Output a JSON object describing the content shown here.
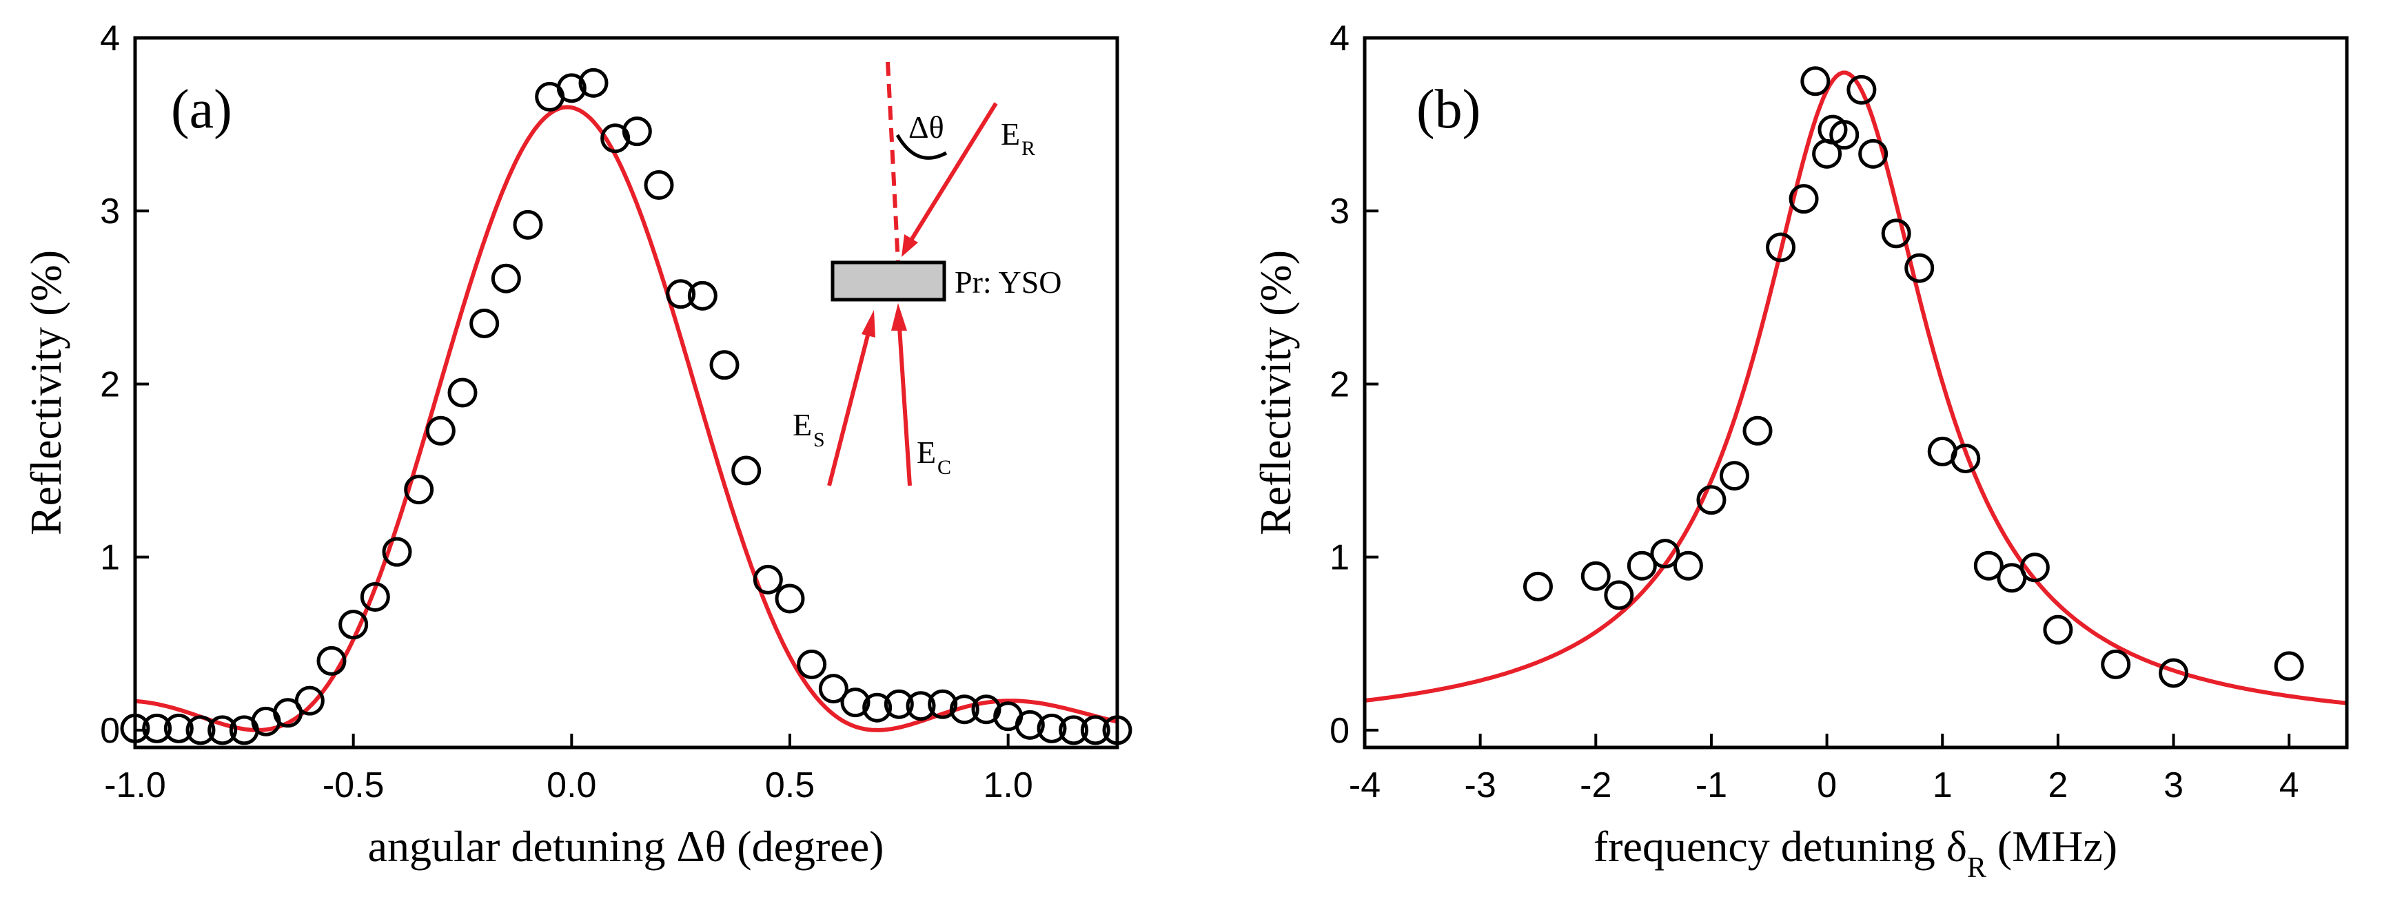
{
  "chart_data": [
    {
      "type": "scatter",
      "panel_label": "(a)",
      "xlabel": "angular detuning Δθ (degree)",
      "ylabel": "Reflectivity (%)",
      "xlim": [
        -1.0,
        1.25
      ],
      "ylim": [
        -0.1,
        4.0
      ],
      "xticks": [
        -1.0,
        -0.5,
        0.0,
        0.5,
        1.0
      ],
      "xtick_labels": [
        "-1.0",
        "-0.5",
        "0.0",
        "0.5",
        "1.0"
      ],
      "yticks": [
        0,
        1,
        2,
        3,
        4
      ],
      "ytick_labels": [
        "0",
        "1",
        "2",
        "3",
        "4"
      ],
      "series": [
        {
          "name": "measured",
          "style": "open-circle",
          "x": [
            -1.0,
            -0.95,
            -0.9,
            -0.85,
            -0.8,
            -0.75,
            -0.7,
            -0.65,
            -0.6,
            -0.55,
            -0.5,
            -0.45,
            -0.4,
            -0.35,
            -0.3,
            -0.25,
            -0.2,
            -0.15,
            -0.1,
            -0.05,
            0.0,
            0.05,
            0.1,
            0.15,
            0.2,
            0.25,
            0.3,
            0.35,
            0.4,
            0.45,
            0.5,
            0.55,
            0.6,
            0.65,
            0.7,
            0.75,
            0.8,
            0.85,
            0.9,
            0.95,
            1.0,
            1.05,
            1.1,
            1.15,
            1.2,
            1.25
          ],
          "y": [
            0.01,
            0.01,
            0.01,
            0.0,
            0.0,
            0.0,
            0.05,
            0.1,
            0.17,
            0.4,
            0.61,
            0.77,
            1.03,
            1.39,
            1.73,
            1.95,
            2.35,
            2.61,
            2.92,
            3.66,
            3.71,
            3.74,
            3.42,
            3.46,
            3.15,
            2.52,
            2.51,
            2.11,
            1.5,
            0.87,
            0.76,
            0.38,
            0.24,
            0.16,
            0.13,
            0.15,
            0.14,
            0.15,
            0.12,
            0.12,
            0.08,
            0.03,
            0.01,
            0.0,
            0.0,
            0.0
          ]
        },
        {
          "name": "fit",
          "style": "line",
          "color": "#e8202a",
          "model": "sinc-squared",
          "amplitude": 3.6,
          "center": -0.01,
          "first_zero_offset": 0.71
        }
      ],
      "inset": {
        "angle_label": "Δθ",
        "sample_label": "Pr: YSO",
        "beam_r_label": "E",
        "beam_r_sub": "R",
        "beam_s_label": "E",
        "beam_s_sub": "S",
        "beam_c_label": "E",
        "beam_c_sub": "C"
      }
    },
    {
      "type": "scatter",
      "panel_label": "(b)",
      "xlabel_main": "frequency detuning δ",
      "xlabel_sub": "R",
      "xlabel_unit": " (MHz)",
      "ylabel": "Reflectivity (%)",
      "xlim": [
        -4.0,
        4.5
      ],
      "ylim": [
        -0.1,
        4.0
      ],
      "xticks": [
        -4,
        -3,
        -2,
        -1,
        0,
        1,
        2,
        3,
        4
      ],
      "xtick_labels": [
        "-4",
        "-3",
        "-2",
        "-1",
        "0",
        "1",
        "2",
        "3",
        "4"
      ],
      "yticks": [
        0,
        1,
        2,
        3,
        4
      ],
      "ytick_labels": [
        "0",
        "1",
        "2",
        "3",
        "4"
      ],
      "series": [
        {
          "name": "measured",
          "style": "open-circle",
          "x": [
            -2.5,
            -2.0,
            -1.8,
            -1.6,
            -1.4,
            -1.2,
            -1.0,
            -0.8,
            -0.6,
            -0.4,
            -0.2,
            -0.1,
            0.0,
            0.05,
            0.15,
            0.3,
            0.4,
            0.6,
            0.8,
            1.0,
            1.2,
            1.4,
            1.6,
            1.8,
            2.0,
            2.5,
            3.0,
            4.0
          ],
          "y": [
            0.83,
            0.89,
            0.78,
            0.95,
            1.02,
            0.95,
            1.33,
            1.47,
            1.73,
            2.79,
            3.07,
            3.75,
            3.33,
            3.47,
            3.44,
            3.7,
            3.33,
            2.87,
            2.67,
            1.61,
            1.57,
            0.95,
            0.88,
            0.94,
            0.58,
            0.38,
            0.33,
            0.37
          ]
        },
        {
          "name": "fit",
          "style": "line",
          "color": "#e8202a",
          "model": "lorentzian",
          "amplitude": 3.8,
          "center": 0.15,
          "hwhm": 0.9
        }
      ]
    }
  ]
}
